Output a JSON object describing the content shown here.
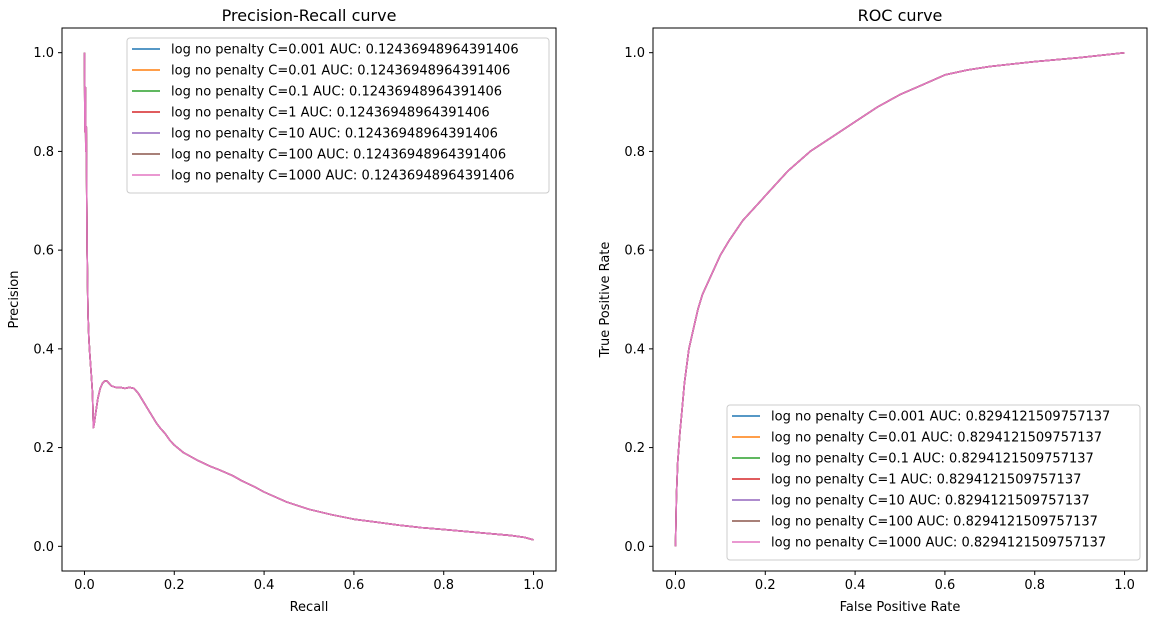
{
  "chart_data": [
    {
      "type": "line",
      "title": "Precision-Recall curve",
      "xlabel": "Recall",
      "ylabel": "Precision",
      "xlim": [
        -0.05,
        1.05
      ],
      "ylim": [
        -0.05,
        1.05
      ],
      "xticks": [
        "0.0",
        "0.2",
        "0.4",
        "0.6",
        "0.8",
        "1.0"
      ],
      "yticks": [
        "0.0",
        "0.2",
        "0.4",
        "0.6",
        "0.8",
        "1.0"
      ],
      "grid": false,
      "legend_position": "top-right",
      "series": [
        {
          "name": "log no penalty C=0.001 AUC: 0.12436948964391406",
          "color": "#1f77b4"
        },
        {
          "name": "log no penalty C=0.01 AUC: 0.12436948964391406",
          "color": "#ff7f0e"
        },
        {
          "name": "log no penalty C=0.1 AUC: 0.12436948964391406",
          "color": "#2ca02c"
        },
        {
          "name": "log no penalty C=1 AUC: 0.12436948964391406",
          "color": "#d62728"
        },
        {
          "name": "log no penalty C=10 AUC: 0.12436948964391406",
          "color": "#9467bd"
        },
        {
          "name": "log no penalty C=100 AUC: 0.12436948964391406",
          "color": "#8c564b"
        },
        {
          "name": "log no penalty C=1000 AUC: 0.12436948964391406",
          "color": "#e377c2"
        }
      ],
      "shared_curve": {
        "x": [
          0.0,
          0.001,
          0.002,
          0.003,
          0.004,
          0.006,
          0.008,
          0.01,
          0.012,
          0.015,
          0.018,
          0.02,
          0.022,
          0.025,
          0.03,
          0.035,
          0.04,
          0.045,
          0.05,
          0.06,
          0.07,
          0.08,
          0.09,
          0.1,
          0.11,
          0.12,
          0.13,
          0.14,
          0.15,
          0.16,
          0.17,
          0.18,
          0.19,
          0.2,
          0.22,
          0.25,
          0.28,
          0.3,
          0.33,
          0.35,
          0.38,
          0.4,
          0.45,
          0.5,
          0.55,
          0.6,
          0.65,
          0.7,
          0.75,
          0.8,
          0.85,
          0.9,
          0.95,
          0.98,
          1.0
        ],
        "y": [
          1.0,
          0.84,
          0.93,
          0.8,
          0.85,
          0.6,
          0.47,
          0.42,
          0.39,
          0.35,
          0.31,
          0.24,
          0.25,
          0.27,
          0.3,
          0.32,
          0.33,
          0.335,
          0.335,
          0.325,
          0.322,
          0.322,
          0.32,
          0.322,
          0.32,
          0.31,
          0.295,
          0.28,
          0.265,
          0.25,
          0.238,
          0.228,
          0.215,
          0.205,
          0.19,
          0.175,
          0.162,
          0.155,
          0.143,
          0.133,
          0.12,
          0.11,
          0.09,
          0.075,
          0.064,
          0.055,
          0.049,
          0.043,
          0.038,
          0.034,
          0.03,
          0.026,
          0.022,
          0.018,
          0.013
        ]
      }
    },
    {
      "type": "line",
      "title": "ROC curve",
      "xlabel": "False Positive Rate",
      "ylabel": "True Positive Rate",
      "xlim": [
        -0.05,
        1.05
      ],
      "ylim": [
        -0.05,
        1.05
      ],
      "xticks": [
        "0.0",
        "0.2",
        "0.4",
        "0.6",
        "0.8",
        "1.0"
      ],
      "yticks": [
        "0.0",
        "0.2",
        "0.4",
        "0.6",
        "0.8",
        "1.0"
      ],
      "grid": false,
      "legend_position": "bottom-right",
      "series": [
        {
          "name": "log no penalty C=0.001 AUC: 0.8294121509757137",
          "color": "#1f77b4"
        },
        {
          "name": "log no penalty C=0.01 AUC: 0.8294121509757137",
          "color": "#ff7f0e"
        },
        {
          "name": "log no penalty C=0.1 AUC: 0.8294121509757137",
          "color": "#2ca02c"
        },
        {
          "name": "log no penalty C=1 AUC: 0.8294121509757137",
          "color": "#d62728"
        },
        {
          "name": "log no penalty C=10 AUC: 0.8294121509757137",
          "color": "#9467bd"
        },
        {
          "name": "log no penalty C=100 AUC: 0.8294121509757137",
          "color": "#8c564b"
        },
        {
          "name": "log no penalty C=1000 AUC: 0.8294121509757137",
          "color": "#e377c2"
        }
      ],
      "shared_curve": {
        "x": [
          0.0,
          0.002,
          0.005,
          0.01,
          0.015,
          0.02,
          0.03,
          0.04,
          0.05,
          0.06,
          0.08,
          0.1,
          0.12,
          0.15,
          0.18,
          0.2,
          0.25,
          0.3,
          0.35,
          0.4,
          0.45,
          0.5,
          0.55,
          0.6,
          0.65,
          0.7,
          0.8,
          0.9,
          1.0
        ],
        "y": [
          0.0,
          0.1,
          0.17,
          0.23,
          0.28,
          0.33,
          0.4,
          0.44,
          0.48,
          0.51,
          0.55,
          0.59,
          0.62,
          0.66,
          0.69,
          0.71,
          0.76,
          0.8,
          0.83,
          0.86,
          0.89,
          0.915,
          0.935,
          0.955,
          0.965,
          0.972,
          0.982,
          0.99,
          1.0
        ]
      }
    }
  ]
}
